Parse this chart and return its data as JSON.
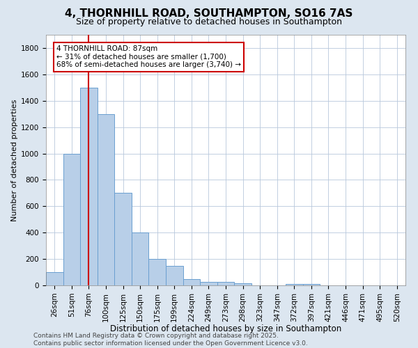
{
  "title": "4, THORNHILL ROAD, SOUTHAMPTON, SO16 7AS",
  "subtitle": "Size of property relative to detached houses in Southampton",
  "xlabel": "Distribution of detached houses by size in Southampton",
  "ylabel": "Number of detached properties",
  "categories": [
    "26sqm",
    "51sqm",
    "76sqm",
    "100sqm",
    "125sqm",
    "150sqm",
    "175sqm",
    "199sqm",
    "224sqm",
    "249sqm",
    "273sqm",
    "298sqm",
    "323sqm",
    "347sqm",
    "372sqm",
    "397sqm",
    "421sqm",
    "446sqm",
    "471sqm",
    "495sqm",
    "520sqm"
  ],
  "values": [
    100,
    1000,
    1500,
    1300,
    700,
    400,
    200,
    150,
    50,
    25,
    25,
    15,
    0,
    0,
    10,
    10,
    0,
    0,
    0,
    0,
    0
  ],
  "bar_color": "#b8cfe8",
  "bar_edge_color": "#6a9fd0",
  "vline_x": 2,
  "vline_color": "#cc0000",
  "annotation_text": "4 THORNHILL ROAD: 87sqm\n← 31% of detached houses are smaller (1,700)\n68% of semi-detached houses are larger (3,740) →",
  "annotation_box_color": "#cc0000",
  "annotation_box_fill": "#ffffff",
  "ylim": [
    0,
    1900
  ],
  "yticks": [
    0,
    200,
    400,
    600,
    800,
    1000,
    1200,
    1400,
    1600,
    1800
  ],
  "bg_color": "#dce6f0",
  "plot_bg_color": "#ffffff",
  "grid_color": "#b8c8dc",
  "footer": "Contains HM Land Registry data © Crown copyright and database right 2025.\nContains public sector information licensed under the Open Government Licence v3.0.",
  "title_fontsize": 11,
  "subtitle_fontsize": 9,
  "xlabel_fontsize": 8.5,
  "ylabel_fontsize": 8,
  "tick_fontsize": 7.5,
  "annot_fontsize": 7.5,
  "footer_fontsize": 6.5
}
